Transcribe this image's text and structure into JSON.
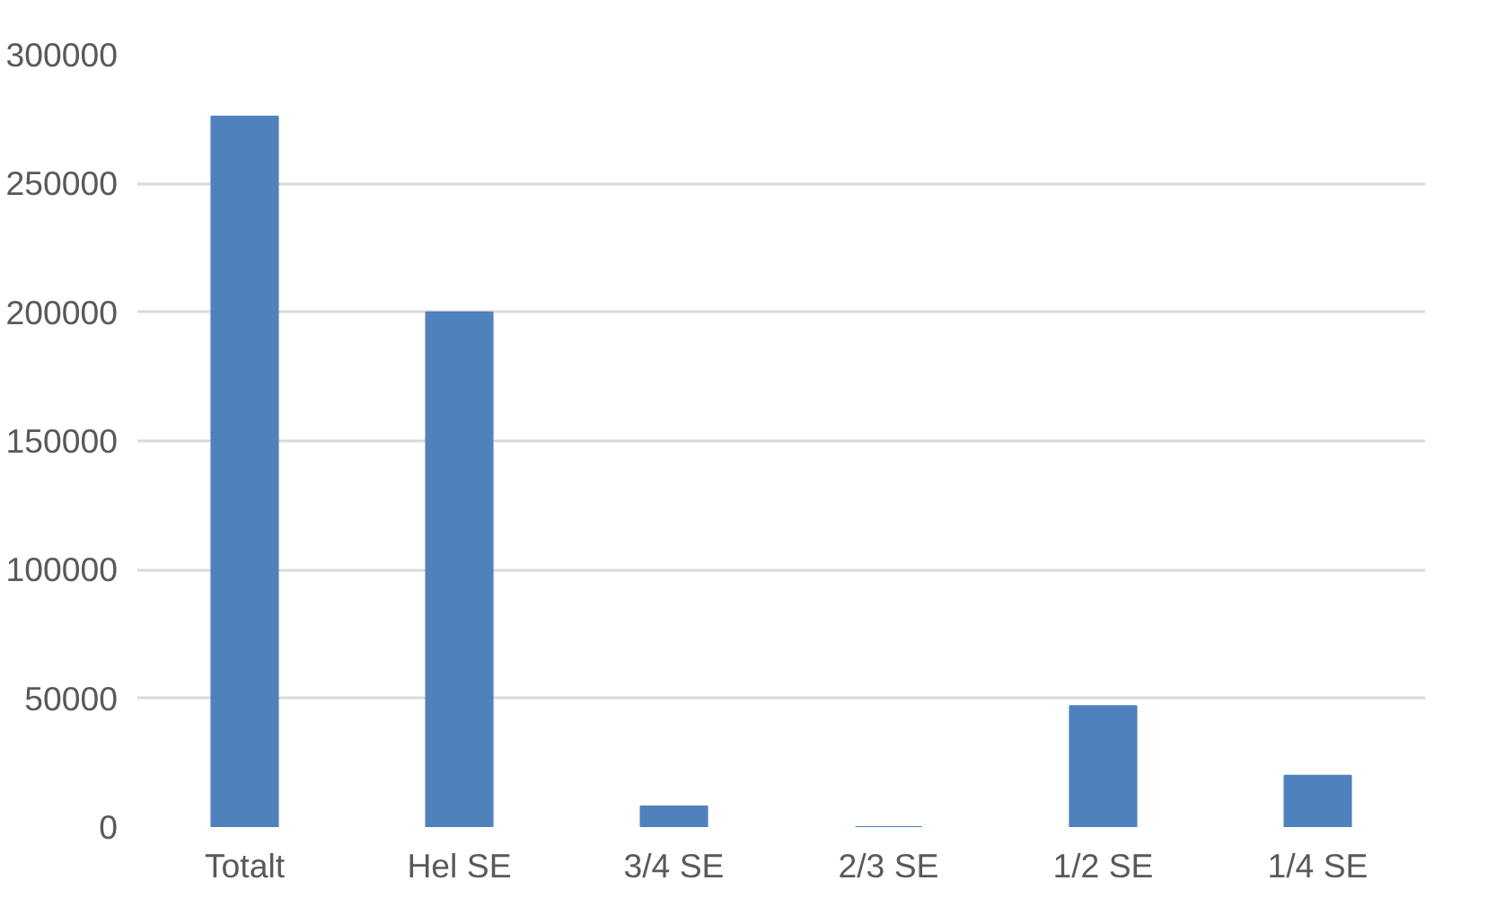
{
  "chart_data": {
    "type": "bar",
    "categories": [
      "Totalt",
      "Hel SE",
      "3/4 SE",
      "2/3 SE",
      "1/2 SE",
      "1/4 SE"
    ],
    "values": [
      276000,
      200000,
      8000,
      0,
      47000,
      20000
    ],
    "color": "#4f81bd",
    "ylim": [
      0,
      300000
    ],
    "yticks": [
      0,
      50000,
      100000,
      150000,
      200000,
      250000,
      300000
    ],
    "grid": "y"
  }
}
